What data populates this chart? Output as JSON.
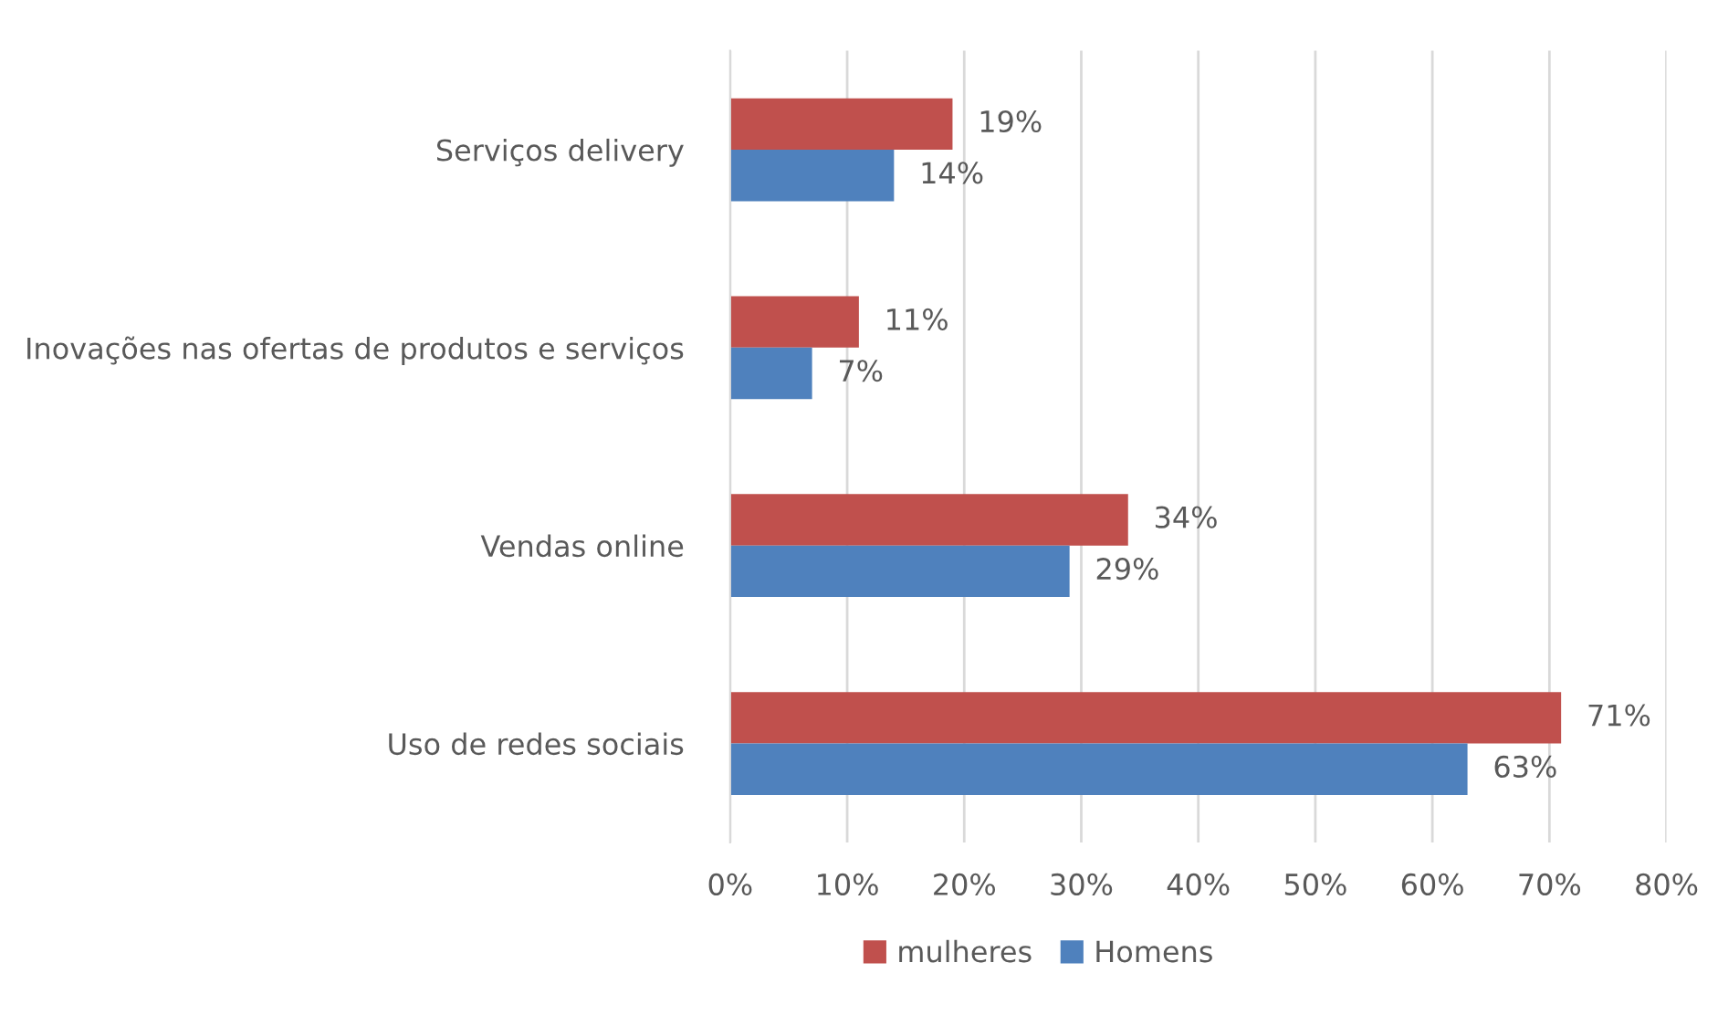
{
  "chart_data": {
    "type": "bar",
    "orientation": "horizontal",
    "categories": [
      "Serviços delivery",
      "Inovações nas ofertas de produtos e serviços",
      "Vendas online",
      "Uso de redes sociais"
    ],
    "series": [
      {
        "name": "mulheres",
        "color": "#c0504d",
        "values": [
          19,
          11,
          34,
          71
        ],
        "value_labels": [
          "19%",
          "11%",
          "34%",
          "71%"
        ]
      },
      {
        "name": "Homens",
        "color": "#4f81bd",
        "values": [
          14,
          7,
          29,
          63
        ],
        "value_labels": [
          "14%",
          "7%",
          "29%",
          "63%"
        ]
      }
    ],
    "xlim": [
      0,
      80
    ],
    "xticks": [
      {
        "value": 0,
        "label": "0%"
      },
      {
        "value": 10,
        "label": "10%"
      },
      {
        "value": 20,
        "label": "20%"
      },
      {
        "value": 30,
        "label": "30%"
      },
      {
        "value": 40,
        "label": "40%"
      },
      {
        "value": 50,
        "label": "50%"
      },
      {
        "value": 60,
        "label": "60%"
      },
      {
        "value": 70,
        "label": "70%"
      },
      {
        "value": 80,
        "label": "80%"
      }
    ],
    "grid": "x",
    "legend": "bottom"
  }
}
